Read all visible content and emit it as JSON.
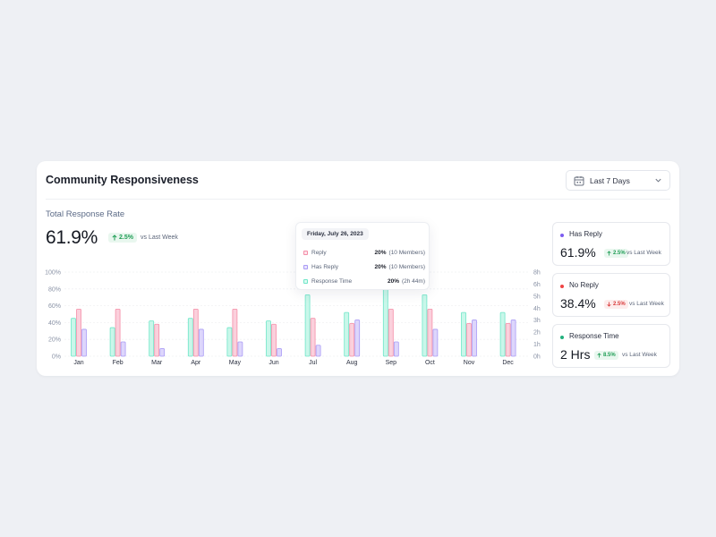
{
  "card": {
    "title": "Community Responsiveness",
    "date_filter": "Last 7 Days"
  },
  "summary": {
    "label": "Total Response Rate",
    "value": "61.9%",
    "change": "2.5%",
    "direction": "up",
    "vs": "vs Last Week"
  },
  "colors": {
    "reply": "#f48fa8",
    "has_reply": "#a99bf5",
    "response_time": "#6fe6c8",
    "up_green": "#1f9d55",
    "down_red": "#d93a3a"
  },
  "tooltip": {
    "date": "Friday, July 26, 2023",
    "rows": [
      {
        "name": "Reply",
        "percent": "20%",
        "detail": "(10 Members)"
      },
      {
        "name": "Has Reply",
        "percent": "20%",
        "detail": "(10 Members)"
      },
      {
        "name": "Response Time",
        "percent": "20%",
        "detail": "(2h 44m)"
      }
    ]
  },
  "chart_data": {
    "type": "bar",
    "categories": [
      "Jan",
      "Feb",
      "Mar",
      "Apr",
      "May",
      "Jun",
      "Jul",
      "Aug",
      "Sep",
      "Oct",
      "Nov",
      "Dec"
    ],
    "left_axis_ticks": [
      "100%",
      "80%",
      "60%",
      "40%",
      "20%",
      "0%"
    ],
    "right_axis_ticks": [
      "8h",
      "6h",
      "5h",
      "4h",
      "3h",
      "2h",
      "1h",
      "0h"
    ],
    "ylim": [
      0,
      100
    ],
    "series": [
      {
        "name": "Response Time",
        "color": "#6fe6c8",
        "values": [
          45,
          34,
          42,
          45,
          34,
          42,
          73,
          52,
          80,
          73,
          52,
          52
        ]
      },
      {
        "name": "Reply",
        "color": "#f48fa8",
        "values": [
          56,
          56,
          38,
          56,
          56,
          38,
          45,
          39,
          56,
          56,
          39,
          39
        ]
      },
      {
        "name": "Has Reply",
        "color": "#a99bf5",
        "values": [
          32,
          17,
          9,
          32,
          17,
          9,
          13,
          43,
          17,
          32,
          43,
          43
        ]
      }
    ]
  },
  "side_stats": [
    {
      "label": "Has Reply",
      "value": "61.9%",
      "change": "2.5%",
      "direction": "up",
      "vs": "vs Last Week",
      "dot": "#7c5cf0"
    },
    {
      "label": "No Reply",
      "value": "38.4%",
      "change": "2.5%",
      "direction": "down",
      "vs": "vs Last Week",
      "dot": "#ef4444"
    },
    {
      "label": "Response Time",
      "value": "2 Hrs",
      "change": "8.5%",
      "direction": "up",
      "vs": "vs Last Week",
      "dot": "#22b07d"
    }
  ]
}
